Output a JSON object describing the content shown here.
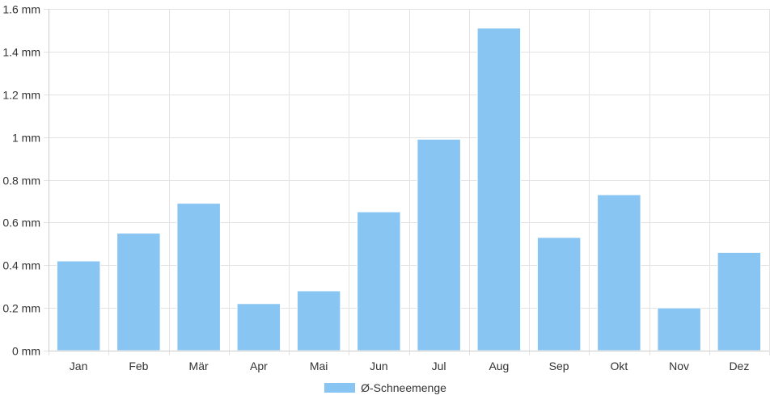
{
  "chart_data": {
    "type": "bar",
    "categories": [
      "Jan",
      "Feb",
      "Mär",
      "Apr",
      "Mai",
      "Jun",
      "Jul",
      "Aug",
      "Sep",
      "Okt",
      "Nov",
      "Dez"
    ],
    "series": [
      {
        "name": "Ø-Schneemenge",
        "values": [
          0.42,
          0.55,
          0.69,
          0.22,
          0.28,
          0.65,
          0.99,
          1.51,
          0.53,
          0.73,
          0.2,
          0.46
        ]
      }
    ],
    "ylim": [
      0,
      1.6
    ],
    "yticks": [
      0,
      0.2,
      0.4,
      0.6,
      0.8,
      1,
      1.2,
      1.4,
      1.6
    ],
    "ytick_labels": [
      "0 mm",
      "0.2 mm",
      "0.4 mm",
      "0.6 mm",
      "0.8 mm",
      "1 mm",
      "1.2 mm",
      "1.4 mm",
      "1.6 mm"
    ],
    "grid": true,
    "legend_position": "bottom-center",
    "colors": {
      "bar": "#88c5f2",
      "grid": "#e3e3e3",
      "axis": "#cccccc",
      "text": "#333333"
    }
  }
}
